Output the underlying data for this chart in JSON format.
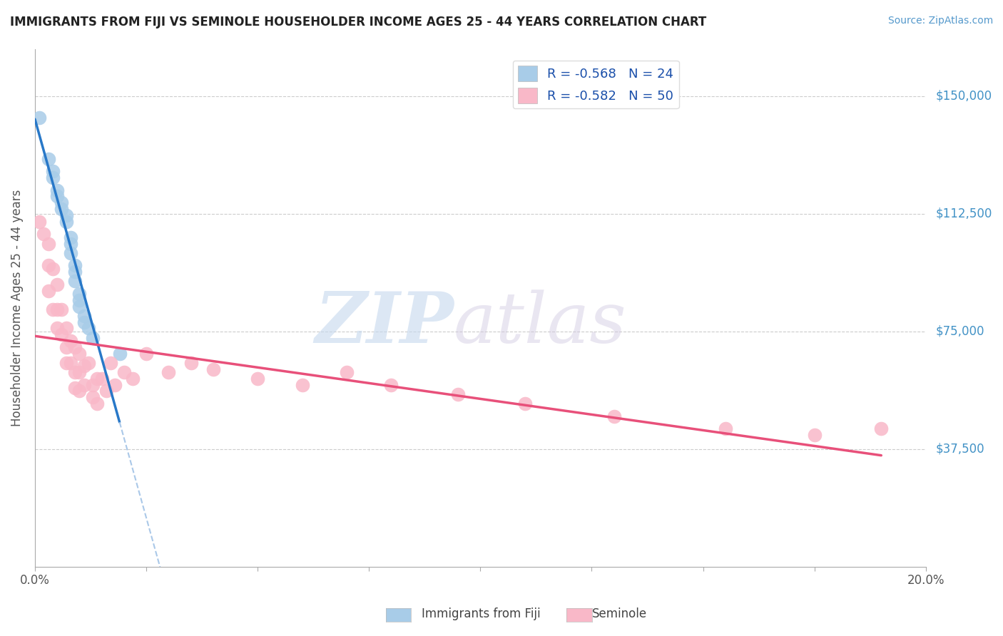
{
  "title": "IMMIGRANTS FROM FIJI VS SEMINOLE HOUSEHOLDER INCOME AGES 25 - 44 YEARS CORRELATION CHART",
  "source": "Source: ZipAtlas.com",
  "ylabel": "Householder Income Ages 25 - 44 years",
  "ytick_labels": [
    "$37,500",
    "$75,000",
    "$112,500",
    "$150,000"
  ],
  "ytick_values": [
    37500,
    75000,
    112500,
    150000
  ],
  "xlim": [
    0.0,
    0.2
  ],
  "ylim": [
    0,
    165000
  ],
  "legend_fiji_r": "R = -0.568",
  "legend_fiji_n": "N = 24",
  "legend_seminole_r": "R = -0.582",
  "legend_seminole_n": "N = 50",
  "fiji_color": "#a8cce8",
  "seminole_color": "#f9b8c8",
  "fiji_trendline_color": "#2878c8",
  "seminole_trendline_color": "#e8507a",
  "fiji_dashed_color": "#aac8e8",
  "background_color": "#ffffff",
  "grid_color": "#cccccc",
  "watermark_zip": "ZIP",
  "watermark_atlas": "atlas",
  "fiji_scatter_x": [
    0.001,
    0.003,
    0.004,
    0.004,
    0.005,
    0.005,
    0.006,
    0.006,
    0.007,
    0.007,
    0.008,
    0.008,
    0.008,
    0.009,
    0.009,
    0.009,
    0.01,
    0.01,
    0.01,
    0.011,
    0.011,
    0.012,
    0.013,
    0.019
  ],
  "fiji_scatter_y": [
    143000,
    130000,
    126000,
    124000,
    120000,
    118000,
    116000,
    114000,
    112000,
    110000,
    105000,
    103000,
    100000,
    96000,
    94000,
    91000,
    87000,
    85000,
    83000,
    80000,
    78000,
    76000,
    73000,
    68000
  ],
  "seminole_scatter_x": [
    0.001,
    0.002,
    0.003,
    0.003,
    0.003,
    0.004,
    0.004,
    0.005,
    0.005,
    0.005,
    0.006,
    0.006,
    0.007,
    0.007,
    0.007,
    0.008,
    0.008,
    0.009,
    0.009,
    0.009,
    0.01,
    0.01,
    0.01,
    0.011,
    0.011,
    0.012,
    0.013,
    0.013,
    0.014,
    0.014,
    0.015,
    0.016,
    0.017,
    0.018,
    0.02,
    0.022,
    0.025,
    0.03,
    0.035,
    0.04,
    0.05,
    0.06,
    0.07,
    0.08,
    0.095,
    0.11,
    0.13,
    0.155,
    0.175,
    0.19
  ],
  "seminole_scatter_y": [
    110000,
    106000,
    103000,
    96000,
    88000,
    95000,
    82000,
    90000,
    82000,
    76000,
    82000,
    74000,
    76000,
    70000,
    65000,
    72000,
    65000,
    70000,
    62000,
    57000,
    68000,
    62000,
    56000,
    64000,
    58000,
    65000,
    58000,
    54000,
    60000,
    52000,
    60000,
    56000,
    65000,
    58000,
    62000,
    60000,
    68000,
    62000,
    65000,
    63000,
    60000,
    58000,
    62000,
    58000,
    55000,
    52000,
    48000,
    44000,
    42000,
    44000
  ]
}
